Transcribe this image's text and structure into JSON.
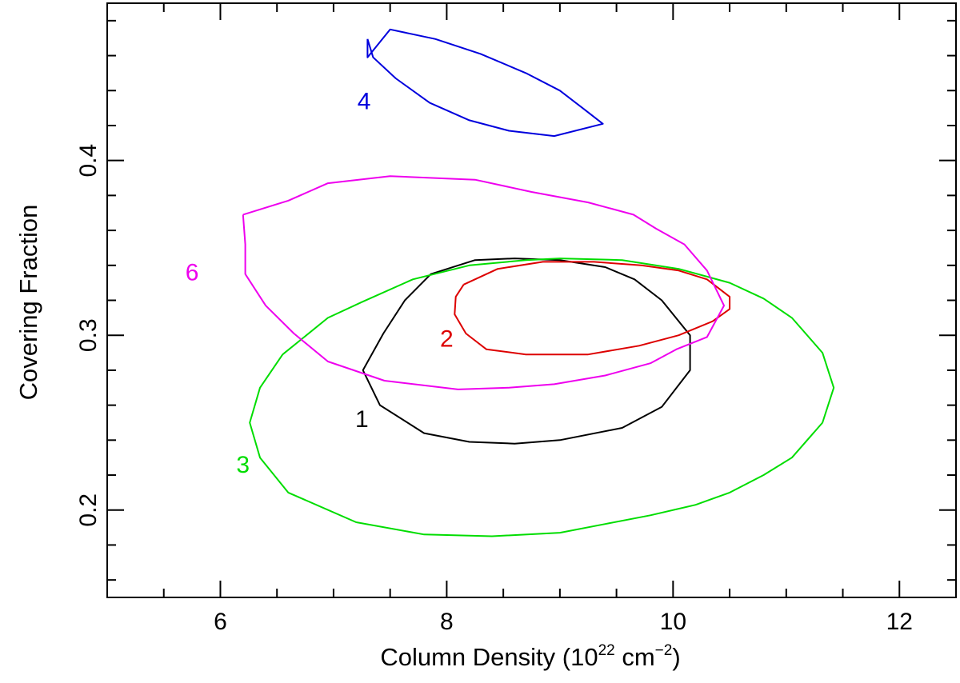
{
  "chart_data": {
    "type": "line",
    "title": "",
    "xlabel": {
      "main": "Column Density (10",
      "sup1": "22",
      "mid": " cm",
      "sup2": "−2",
      "end": ")"
    },
    "ylabel": "Covering Fraction",
    "xlim": [
      5,
      12.5
    ],
    "ylim": [
      0.15,
      0.49
    ],
    "x_ticks": [
      6,
      8,
      10,
      12
    ],
    "x_tick_labels": [
      "6",
      "8",
      "10",
      "12"
    ],
    "y_ticks": [
      0.2,
      0.3,
      0.4
    ],
    "y_tick_labels": [
      "0.2",
      "0.3",
      "0.4"
    ],
    "x_minor_step": 0.5,
    "y_minor_step": 0.02,
    "grid": false,
    "series": [
      {
        "name": "1",
        "color": "#000000",
        "label_pos": [
          7.25,
          0.251
        ],
        "points": [
          [
            7.44,
            0.301
          ],
          [
            7.63,
            0.32
          ],
          [
            7.86,
            0.335
          ],
          [
            8.25,
            0.343
          ],
          [
            8.6,
            0.344
          ],
          [
            9.0,
            0.343
          ],
          [
            9.4,
            0.339
          ],
          [
            9.66,
            0.332
          ],
          [
            9.9,
            0.32
          ],
          [
            10.15,
            0.3
          ],
          [
            10.15,
            0.28
          ],
          [
            9.9,
            0.259
          ],
          [
            9.55,
            0.247
          ],
          [
            9.0,
            0.24
          ],
          [
            8.6,
            0.238
          ],
          [
            8.2,
            0.239
          ],
          [
            7.8,
            0.244
          ],
          [
            7.41,
            0.26
          ],
          [
            7.26,
            0.28
          ],
          [
            7.44,
            0.301
          ]
        ]
      },
      {
        "name": "2",
        "color": "#dd0000",
        "label_pos": [
          8.0,
          0.297
        ],
        "points": [
          [
            8.15,
            0.329
          ],
          [
            8.45,
            0.338
          ],
          [
            8.85,
            0.342
          ],
          [
            9.3,
            0.342
          ],
          [
            9.72,
            0.34
          ],
          [
            10.05,
            0.337
          ],
          [
            10.3,
            0.332
          ],
          [
            10.5,
            0.322
          ],
          [
            10.5,
            0.315
          ],
          [
            10.35,
            0.308
          ],
          [
            10.05,
            0.3
          ],
          [
            9.7,
            0.294
          ],
          [
            9.25,
            0.289
          ],
          [
            8.7,
            0.289
          ],
          [
            8.35,
            0.292
          ],
          [
            8.17,
            0.301
          ],
          [
            8.07,
            0.312
          ],
          [
            8.08,
            0.322
          ],
          [
            8.15,
            0.329
          ]
        ]
      },
      {
        "name": "3",
        "color": "#00dd00",
        "label_pos": [
          6.2,
          0.225
        ],
        "points": [
          [
            6.55,
            0.289
          ],
          [
            6.95,
            0.31
          ],
          [
            7.25,
            0.319
          ],
          [
            7.7,
            0.332
          ],
          [
            8.2,
            0.34
          ],
          [
            8.7,
            0.343
          ],
          [
            9.0,
            0.344
          ],
          [
            9.55,
            0.343
          ],
          [
            10.05,
            0.338
          ],
          [
            10.5,
            0.33
          ],
          [
            10.8,
            0.321
          ],
          [
            11.05,
            0.31
          ],
          [
            11.32,
            0.29
          ],
          [
            11.42,
            0.27
          ],
          [
            11.32,
            0.25
          ],
          [
            11.05,
            0.23
          ],
          [
            10.8,
            0.22
          ],
          [
            10.5,
            0.21
          ],
          [
            10.2,
            0.203
          ],
          [
            9.8,
            0.197
          ],
          [
            9.4,
            0.192
          ],
          [
            9.0,
            0.187
          ],
          [
            8.4,
            0.185
          ],
          [
            7.8,
            0.186
          ],
          [
            7.2,
            0.193
          ],
          [
            6.6,
            0.21
          ],
          [
            6.35,
            0.23
          ],
          [
            6.26,
            0.25
          ],
          [
            6.35,
            0.27
          ],
          [
            6.55,
            0.289
          ]
        ]
      },
      {
        "name": "4",
        "color": "#0000dd",
        "label_pos": [
          7.27,
          0.433
        ],
        "points": [
          [
            7.3,
            0.4695
          ],
          [
            7.3,
            0.459
          ],
          [
            7.5,
            0.475
          ],
          [
            7.9,
            0.4695
          ],
          [
            8.3,
            0.461
          ],
          [
            8.7,
            0.45
          ],
          [
            9.0,
            0.44
          ],
          [
            9.2,
            0.43
          ],
          [
            9.38,
            0.421
          ],
          [
            8.95,
            0.414
          ],
          [
            8.55,
            0.417
          ],
          [
            8.2,
            0.423
          ],
          [
            7.85,
            0.433
          ],
          [
            7.55,
            0.447
          ],
          [
            7.35,
            0.459
          ],
          [
            7.3,
            0.4695
          ]
        ]
      },
      {
        "name": "6",
        "color": "#ee00ee",
        "label_pos": [
          5.75,
          0.335
        ],
        "points": [
          [
            6.2,
            0.369
          ],
          [
            6.6,
            0.377
          ],
          [
            6.95,
            0.387
          ],
          [
            7.5,
            0.391
          ],
          [
            8.25,
            0.389
          ],
          [
            8.75,
            0.382
          ],
          [
            9.25,
            0.376
          ],
          [
            9.65,
            0.369
          ],
          [
            9.85,
            0.361
          ],
          [
            10.1,
            0.352
          ],
          [
            10.3,
            0.337
          ],
          [
            10.45,
            0.317
          ],
          [
            10.3,
            0.299
          ],
          [
            10.03,
            0.292
          ],
          [
            9.8,
            0.284
          ],
          [
            9.4,
            0.277
          ],
          [
            8.95,
            0.272
          ],
          [
            8.55,
            0.27
          ],
          [
            8.1,
            0.269
          ],
          [
            7.45,
            0.274
          ],
          [
            6.95,
            0.285
          ],
          [
            6.65,
            0.301
          ],
          [
            6.4,
            0.317
          ],
          [
            6.22,
            0.335
          ],
          [
            6.22,
            0.352
          ],
          [
            6.2,
            0.369
          ]
        ]
      }
    ]
  }
}
